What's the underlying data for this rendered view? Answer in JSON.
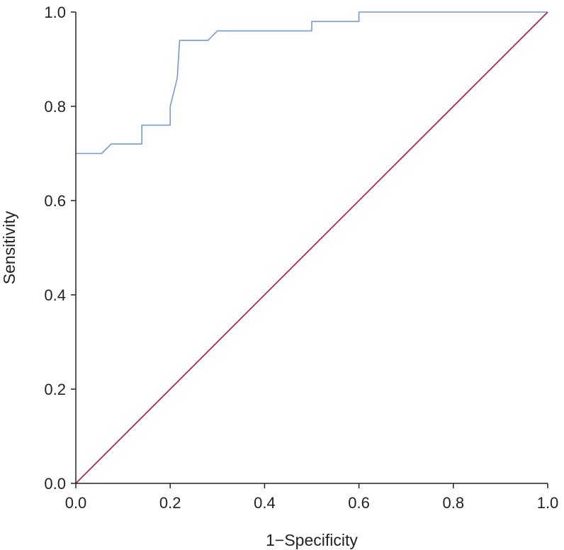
{
  "chart_data": {
    "type": "line",
    "title": "",
    "xlabel": "1−Specificity",
    "ylabel": "Sensitivity",
    "xlim": [
      0.0,
      1.0
    ],
    "ylim": [
      0.0,
      1.0
    ],
    "grid": false,
    "x_ticks": [
      "0.0",
      "0.2",
      "0.4",
      "0.6",
      "0.8",
      "1.0"
    ],
    "y_ticks": [
      "0.0",
      "0.2",
      "0.4",
      "0.6",
      "0.8",
      "1.0"
    ],
    "series": [
      {
        "color": "#7799cc",
        "points": [
          [
            0.0,
            0.7
          ],
          [
            0.055,
            0.7
          ],
          [
            0.075,
            0.72
          ],
          [
            0.14,
            0.72
          ],
          [
            0.14,
            0.76
          ],
          [
            0.2,
            0.76
          ],
          [
            0.2,
            0.8
          ],
          [
            0.215,
            0.86
          ],
          [
            0.22,
            0.94
          ],
          [
            0.28,
            0.94
          ],
          [
            0.3,
            0.96
          ],
          [
            0.5,
            0.96
          ],
          [
            0.5,
            0.98
          ],
          [
            0.6,
            0.98
          ],
          [
            0.6,
            1.0
          ],
          [
            1.0,
            1.0
          ]
        ]
      },
      {
        "color": "#b0284a",
        "points": [
          [
            0.0,
            0.0
          ],
          [
            1.0,
            1.0
          ]
        ]
      }
    ]
  }
}
